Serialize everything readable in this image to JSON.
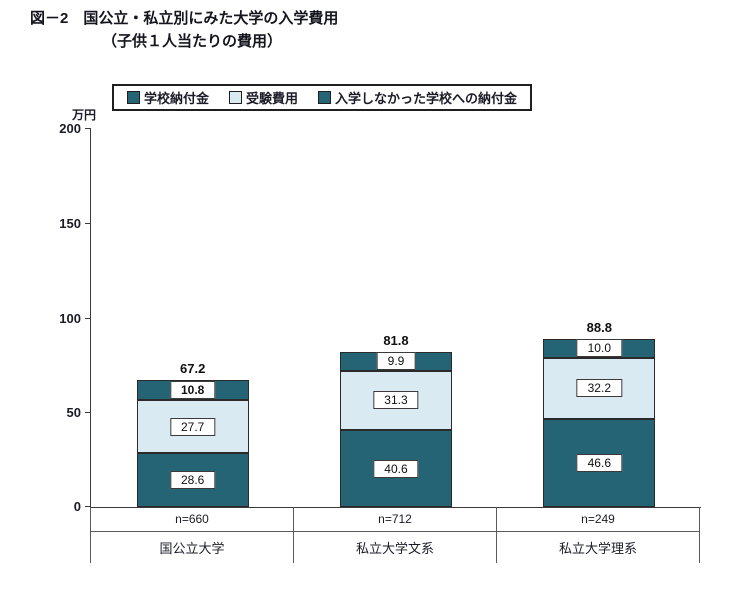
{
  "title": {
    "line1": "図－2　国公立・私立別にみた大学の入学費用",
    "line2": "（子供１人当たりの費用）"
  },
  "y_axis": {
    "unit_label": "万円",
    "ticks": [
      "200",
      "150",
      "100",
      "50",
      "0"
    ]
  },
  "legend": {
    "items": [
      {
        "label": "学校納付金",
        "color": "#256474"
      },
      {
        "label": "受験費用",
        "color": "#daeaf2"
      },
      {
        "label": "入学しなかった学校への納付金",
        "color": "#256474"
      }
    ]
  },
  "chart_data": {
    "type": "bar",
    "stacked": true,
    "title": "国公立・私立別にみた大学の入学費用（子供１人当たりの費用）",
    "ylabel": "万円",
    "ylim": [
      0,
      200
    ],
    "grid": false,
    "legend_position": "top",
    "categories": [
      "国公立大学",
      "私立大学文系",
      "私立大学理系"
    ],
    "sample_sizes": [
      "n=660",
      "n=712",
      "n=249"
    ],
    "series": [
      {
        "name": "学校納付金",
        "color": "#256474",
        "values": [
          28.6,
          40.6,
          46.6
        ]
      },
      {
        "name": "受験費用",
        "color": "#daeaf2",
        "values": [
          27.7,
          31.3,
          32.2
        ]
      },
      {
        "name": "入学しなかった学校への納付金",
        "color": "#256474",
        "values": [
          10.8,
          9.9,
          10.0
        ]
      }
    ],
    "value_labels": [
      [
        "28.6",
        "40.6",
        "46.6"
      ],
      [
        "27.7",
        "31.3",
        "32.2"
      ],
      [
        "10.8",
        "9.9",
        "10.0"
      ]
    ],
    "totals": [
      "67.2",
      "81.8",
      "88.8"
    ]
  }
}
